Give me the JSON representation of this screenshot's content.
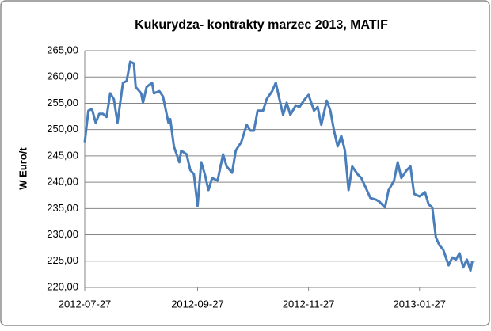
{
  "chart_data": {
    "type": "line",
    "title": "Kukurydza- kontrakty marzec 2013, MATIF",
    "y_label": "W Euro/t",
    "x": [
      "2012-07-27",
      "2012-07-29",
      "2012-07-31",
      "2012-08-02",
      "2012-08-04",
      "2012-08-06",
      "2012-08-08",
      "2012-08-10",
      "2012-08-12",
      "2012-08-14",
      "2012-08-17",
      "2012-08-19",
      "2012-08-21",
      "2012-08-23",
      "2012-08-24",
      "2012-08-27",
      "2012-08-28",
      "2012-08-30",
      "2012-09-02",
      "2012-09-03",
      "2012-09-06",
      "2012-09-08",
      "2012-09-11",
      "2012-09-12",
      "2012-09-14",
      "2012-09-17",
      "2012-09-18",
      "2012-09-21",
      "2012-09-23",
      "2012-09-25",
      "2012-09-27",
      "2012-09-29",
      "2012-10-01",
      "2012-10-03",
      "2012-10-05",
      "2012-10-08",
      "2012-10-11",
      "2012-10-13",
      "2012-10-16",
      "2012-10-18",
      "2012-10-21",
      "2012-10-24",
      "2012-10-26",
      "2012-10-28",
      "2012-10-30",
      "2012-11-02",
      "2012-11-04",
      "2012-11-07",
      "2012-11-09",
      "2012-11-11",
      "2012-11-13",
      "2012-11-15",
      "2012-11-17",
      "2012-11-20",
      "2012-11-22",
      "2012-11-25",
      "2012-11-27",
      "2012-11-30",
      "2012-12-02",
      "2012-12-04",
      "2012-12-07",
      "2012-12-09",
      "2012-12-11",
      "2012-12-13",
      "2012-12-15",
      "2012-12-17",
      "2012-12-19",
      "2012-12-21",
      "2012-12-24",
      "2012-12-26",
      "2012-12-28",
      "2012-12-31",
      "2013-01-03",
      "2013-01-05",
      "2013-01-08",
      "2013-01-10",
      "2013-01-13",
      "2013-01-15",
      "2013-01-17",
      "2013-01-20",
      "2013-01-22",
      "2013-01-24",
      "2013-01-27",
      "2013-01-30",
      "2013-02-01",
      "2013-02-03",
      "2013-02-05",
      "2013-02-07",
      "2013-02-09",
      "2013-02-12",
      "2013-02-14",
      "2013-02-16",
      "2013-02-18",
      "2013-02-20",
      "2013-02-22",
      "2013-02-24",
      "2013-02-25"
    ],
    "series": [
      {
        "name": "MATIF",
        "color": "#4a7ebb",
        "values": [
          247.6,
          253.6,
          253.9,
          251.3,
          253,
          253,
          252.4,
          256.9,
          255.8,
          251.3,
          258.9,
          259.2,
          262.9,
          262.6,
          258.1,
          256.9,
          255.1,
          258.1,
          258.9,
          256.9,
          257.3,
          256.3,
          251.3,
          252,
          246.8,
          243.8,
          246,
          245.3,
          242.3,
          241.5,
          235.5,
          243.8,
          241.5,
          238.5,
          240.8,
          240.3,
          245.3,
          243,
          241.8,
          246,
          247.6,
          250.9,
          249.8,
          249.8,
          253.6,
          253.6,
          255.8,
          257.3,
          258.9,
          255.8,
          252.8,
          255.1,
          252.8,
          254.6,
          254.3,
          255.8,
          256.6,
          253.6,
          254.3,
          250.9,
          255.5,
          253.6,
          249.8,
          246.8,
          248.8,
          246,
          238.5,
          243,
          241.5,
          240.8,
          239.3,
          237,
          236.7,
          236.3,
          235.2,
          238.5,
          240.3,
          243.8,
          240.8,
          242.3,
          243,
          237.8,
          237.3,
          238.1,
          235.8,
          235.2,
          229.5,
          228,
          227.2,
          224.2,
          225.7,
          225.3,
          226.5,
          223.8,
          225.3,
          223.2,
          225
        ]
      }
    ],
    "xlim": [
      "2012-07-27",
      "2013-02-27"
    ],
    "xticks": [
      "2012-07-27",
      "2012-09-27",
      "2012-11-27",
      "2013-01-27"
    ],
    "ylim": [
      220,
      265
    ],
    "yticks": [
      {
        "value": 220,
        "label": "220,00"
      },
      {
        "value": 225,
        "label": "225,00"
      },
      {
        "value": 230,
        "label": "230,00"
      },
      {
        "value": 235,
        "label": "235,00"
      },
      {
        "value": 240,
        "label": "240,00"
      },
      {
        "value": 245,
        "label": "245,00"
      },
      {
        "value": 250,
        "label": "250,00"
      },
      {
        "value": 255,
        "label": "255,00"
      },
      {
        "value": 260,
        "label": "260,00"
      },
      {
        "value": 265,
        "label": "265,00"
      }
    ],
    "grid": true
  }
}
